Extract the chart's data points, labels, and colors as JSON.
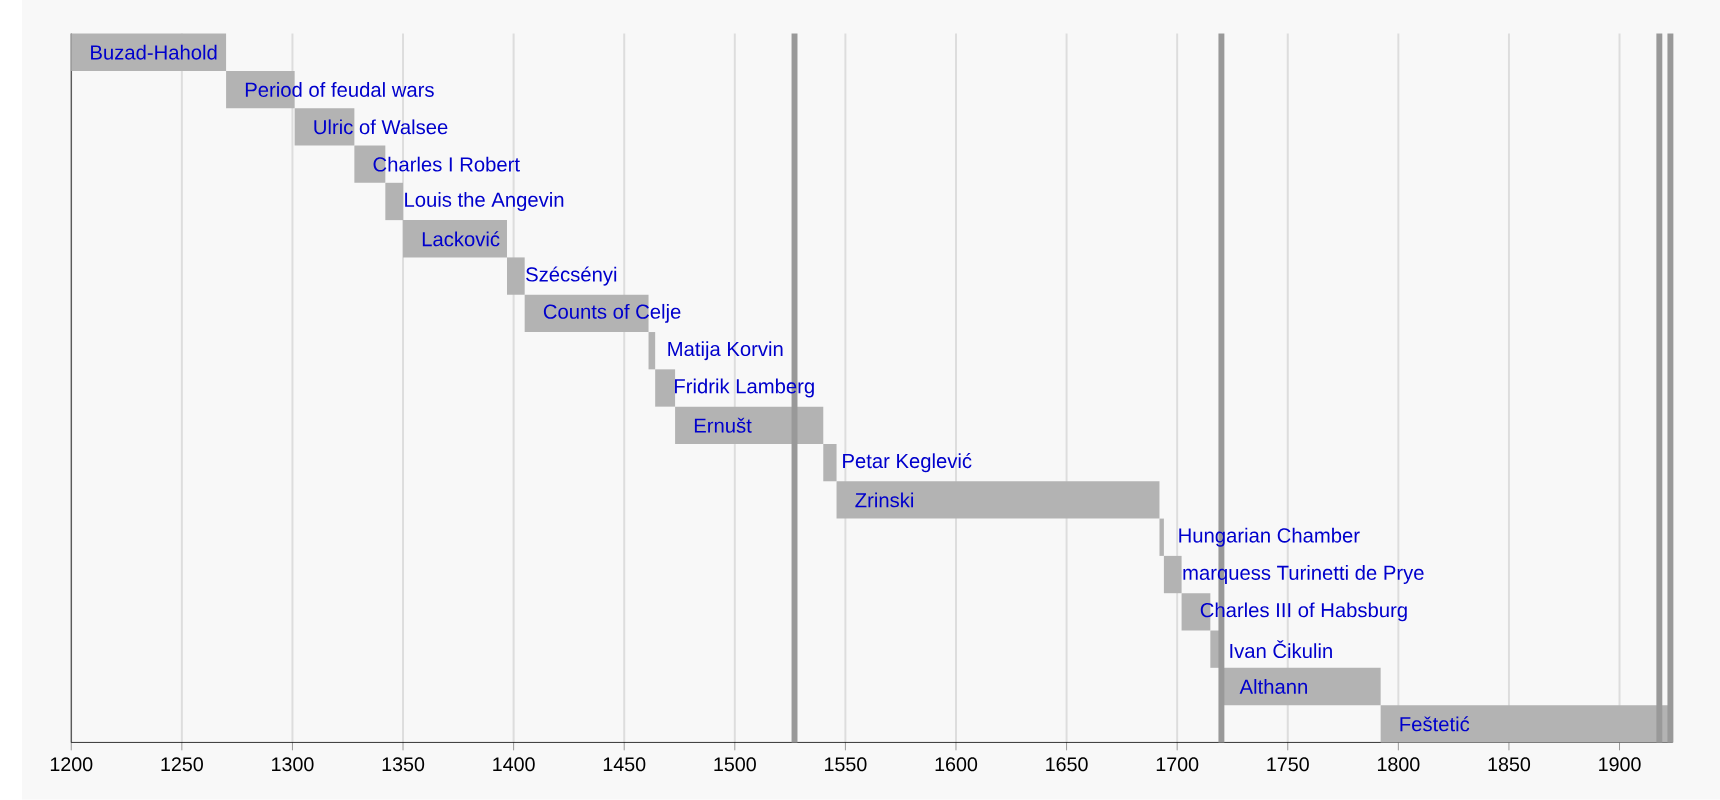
{
  "chart_data": {
    "type": "bar",
    "orientation": "horizontal",
    "color": "#b3b3b3",
    "categories": [
      "Buzad-Hahold",
      "Period of feudal wars",
      "Ulric of Walsee",
      "Charles I Robert",
      "Louis the Angevin",
      "Lacković",
      "Szécsényi",
      "Counts of Celje",
      "Matija Korvin",
      "Fridrik Lamberg",
      "Ernušt",
      "Petar Keglević",
      "Zrinski",
      "Hungarian Chamber",
      "marquess Turinetti de Prye",
      "Charles III of Habsburg",
      "Ivan Čikulin",
      "Althann",
      "Feštetić"
    ],
    "base": [
      1200,
      1270,
      1301,
      1328,
      1342,
      1350,
      1397,
      1405,
      1461,
      1464,
      1473,
      1540,
      1546,
      1692,
      1694,
      1702,
      1715,
      1720,
      1792
    ],
    "values": [
      70,
      31,
      27,
      14,
      8,
      47,
      8,
      56,
      3,
      9,
      67,
      6,
      146,
      2,
      8,
      13,
      5,
      72,
      132
    ],
    "xlim": [
      1200,
      1924
    ],
    "xticks": [
      1200,
      1250,
      1300,
      1350,
      1400,
      1450,
      1500,
      1550,
      1600,
      1650,
      1700,
      1750,
      1800,
      1850,
      1900
    ],
    "grid": "x",
    "tick_labels": "x",
    "ref_lines": [
      {
        "axis": "x",
        "value": 1527,
        "color": "#999999"
      },
      {
        "axis": "x",
        "value": 1720,
        "color": "#999999"
      },
      {
        "axis": "x",
        "value": 1918,
        "color": "#999999"
      },
      {
        "axis": "x",
        "value": 1923,
        "color": "#999999"
      }
    ]
  }
}
